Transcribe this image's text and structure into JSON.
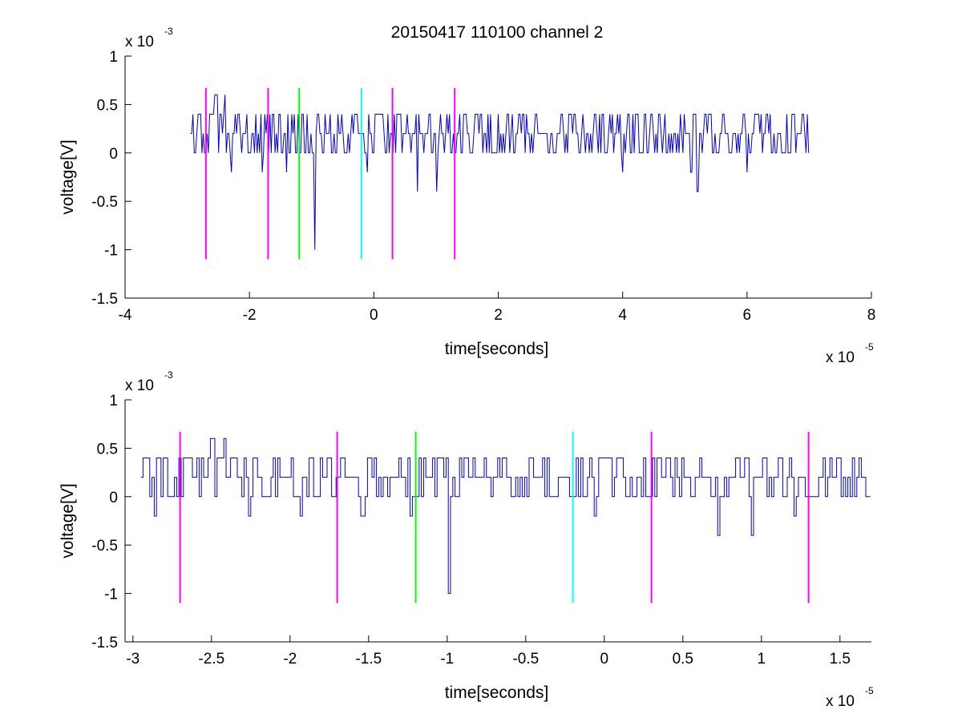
{
  "figure_title": "20150417 110100 channel 2",
  "colors": {
    "trace": "#0000cc",
    "magenta": "#ff00ff",
    "green": "#00ff00",
    "cyan": "#00ffff",
    "axes": "#000000"
  },
  "chart_data": [
    {
      "type": "line",
      "title": "20150417 110100 channel 2",
      "xlabel": "time[seconds]",
      "ylabel": "voltage[V]",
      "x_exponent_label": "x 10",
      "x_exponent_power": "-5",
      "y_exponent_label": "x 10",
      "y_exponent_power": "-3",
      "xlim": [
        -4,
        8
      ],
      "ylim": [
        -1.5,
        1
      ],
      "x_ticks": [
        -4,
        -2,
        0,
        2,
        4,
        6,
        8
      ],
      "x_tick_labels": [
        "-4",
        "-2",
        "0",
        "2",
        "4",
        "6",
        "8"
      ],
      "y_ticks": [
        -1.5,
        -1,
        -0.5,
        0,
        0.5,
        1
      ],
      "y_tick_labels": [
        "-1.5",
        "-1",
        "-0.5",
        "0",
        "0.5",
        "1"
      ],
      "grid": false,
      "series": [
        {
          "trace": "voltage",
          "x_range": [
            -2.95,
            7.0
          ],
          "baseline": 0.2,
          "levels": [
            0.4,
            0.2,
            0,
            -0.2
          ],
          "spikes": [
            {
              "x": -2.55,
              "y": 0.6
            },
            {
              "x": -2.4,
              "y": 0.6
            },
            {
              "x": -2.3,
              "y": -0.2
            },
            {
              "x": -1.8,
              "y": -0.2
            },
            {
              "x": -1.4,
              "y": -0.2
            },
            {
              "x": -0.95,
              "y": -1.0
            },
            {
              "x": -0.1,
              "y": -0.2
            },
            {
              "x": 0.7,
              "y": -0.4
            },
            {
              "x": 1.0,
              "y": -0.4
            },
            {
              "x": 4.0,
              "y": -0.2
            },
            {
              "x": 5.1,
              "y": -0.2
            },
            {
              "x": 5.2,
              "y": -0.4
            },
            {
              "x": 6.0,
              "y": -0.2
            }
          ]
        }
      ],
      "markers": [
        {
          "x": -2.7,
          "color": "magenta"
        },
        {
          "x": -1.7,
          "color": "magenta"
        },
        {
          "x": -1.2,
          "color": "green"
        },
        {
          "x": -0.2,
          "color": "cyan"
        },
        {
          "x": 0.3,
          "color": "magenta"
        },
        {
          "x": 1.3,
          "color": "magenta"
        }
      ],
      "marker_ylim": [
        -1.1,
        0.67
      ]
    },
    {
      "type": "line",
      "title": "",
      "xlabel": "time[seconds]",
      "ylabel": "voltage[V]",
      "x_exponent_label": "x 10",
      "x_exponent_power": "-5",
      "y_exponent_label": "x 10",
      "y_exponent_power": "-3",
      "xlim": [
        -3.05,
        1.7
      ],
      "ylim": [
        -1.5,
        1
      ],
      "x_ticks": [
        -3,
        -2.5,
        -2,
        -1.5,
        -1,
        -0.5,
        0,
        0.5,
        1,
        1.5
      ],
      "x_tick_labels": [
        "-3",
        "-2.5",
        "-2",
        "-1.5",
        "-1",
        "-0.5",
        "0",
        "0.5",
        "1",
        "1.5"
      ],
      "y_ticks": [
        -1.5,
        -1,
        -0.5,
        0,
        0.5,
        1
      ],
      "y_tick_labels": [
        "-1.5",
        "-1",
        "-0.5",
        "0",
        "0.5",
        "1"
      ],
      "grid": false,
      "series": [
        {
          "trace": "voltage",
          "x_range": [
            -2.95,
            1.7
          ],
          "baseline": 0.2,
          "levels": [
            0.4,
            0.2,
            0,
            -0.2
          ],
          "spikes": [
            {
              "x": -2.87,
              "y": -0.2
            },
            {
              "x": -2.5,
              "y": 0.6
            },
            {
              "x": -2.42,
              "y": 0.6
            },
            {
              "x": -2.27,
              "y": -0.2
            },
            {
              "x": -1.93,
              "y": -0.2
            },
            {
              "x": -1.55,
              "y": -0.2
            },
            {
              "x": -1.23,
              "y": -0.2
            },
            {
              "x": -0.99,
              "y": -1.0
            },
            {
              "x": -0.07,
              "y": -0.2
            },
            {
              "x": 0.72,
              "y": -0.4
            },
            {
              "x": 0.94,
              "y": -0.4
            },
            {
              "x": 1.21,
              "y": -0.2
            }
          ]
        }
      ],
      "markers": [
        {
          "x": -2.7,
          "color": "magenta"
        },
        {
          "x": -1.7,
          "color": "magenta"
        },
        {
          "x": -1.2,
          "color": "green"
        },
        {
          "x": -0.2,
          "color": "cyan"
        },
        {
          "x": 0.3,
          "color": "magenta"
        },
        {
          "x": 1.3,
          "color": "magenta"
        }
      ],
      "marker_ylim": [
        -1.1,
        0.67
      ]
    }
  ]
}
